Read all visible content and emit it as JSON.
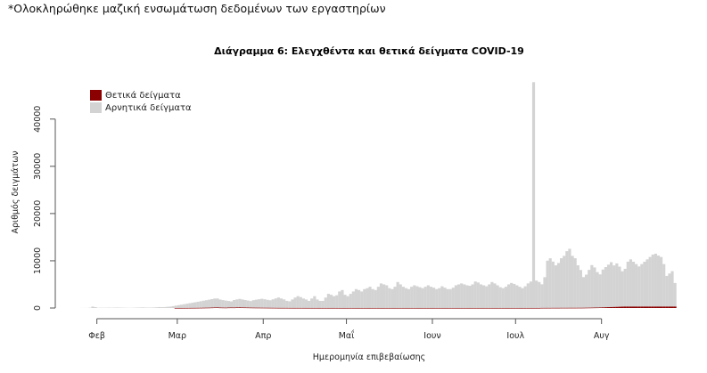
{
  "note": "*Ολοκληρώθηκε μαζική ενσωμάτωση δεδομένων των εργαστηρίων",
  "chart_data": {
    "type": "bar",
    "stacked": true,
    "title": "Διάγραμμα 6: Ελεγχθέντα και θετικά δείγματα COVID-19",
    "xlabel": "Ημερομηνία επιβεβαίωσης",
    "ylabel": "Αριθμός δειγμάτων",
    "x_range": [
      "2020-01-17",
      "2020-08-31"
    ],
    "ylim": [
      0,
      49000
    ],
    "y_ticks": [
      0,
      10000,
      20000,
      30000,
      40000
    ],
    "x_ticks": [
      {
        "label": "Φεβ",
        "date": "2020-02-01"
      },
      {
        "label": "Μαρ",
        "date": "2020-03-01"
      },
      {
        "label": "Απρ",
        "date": "2020-04-01"
      },
      {
        "label": "Μαΐ",
        "date": "2020-05-01"
      },
      {
        "label": "Ιουν",
        "date": "2020-06-01"
      },
      {
        "label": "Ιουλ",
        "date": "2020-07-01"
      },
      {
        "label": "Αυγ",
        "date": "2020-08-01"
      }
    ],
    "legend": {
      "position": "top-left"
    },
    "grid": false,
    "start_date": "2020-01-26",
    "series": [
      {
        "name": "Θετικά δείγματα",
        "color": "#8b0000",
        "values": [
          0,
          0,
          0,
          0,
          0,
          0,
          0,
          0,
          0,
          0,
          0,
          0,
          0,
          0,
          0,
          0,
          0,
          0,
          0,
          0,
          0,
          0,
          0,
          0,
          0,
          0,
          0,
          0,
          0,
          0,
          0,
          0,
          0,
          0,
          1,
          3,
          5,
          8,
          10,
          15,
          20,
          25,
          30,
          40,
          50,
          60,
          70,
          90,
          110,
          120,
          90,
          80,
          70,
          90,
          100,
          95,
          120,
          130,
          110,
          100,
          90,
          80,
          70,
          65,
          60,
          55,
          50,
          45,
          40,
          35,
          30,
          25,
          22,
          20,
          18,
          16,
          15,
          14,
          13,
          12,
          11,
          10,
          9,
          8,
          8,
          7,
          7,
          6,
          6,
          5,
          5,
          5,
          5,
          4,
          4,
          4,
          4,
          3,
          3,
          3,
          3,
          3,
          3,
          3,
          3,
          3,
          3,
          3,
          3,
          3,
          3,
          3,
          3,
          3,
          3,
          3,
          3,
          3,
          3,
          3,
          3,
          3,
          3,
          3,
          3,
          3,
          3,
          3,
          3,
          3,
          3,
          3,
          3,
          3,
          3,
          3,
          3,
          3,
          3,
          3,
          3,
          3,
          3,
          3,
          3,
          3,
          3,
          3,
          3,
          3,
          3,
          3,
          3,
          3,
          3,
          3,
          3,
          3,
          3,
          3,
          3,
          3,
          3,
          3,
          3,
          3,
          20,
          22,
          25,
          25,
          30,
          30,
          30,
          35,
          35,
          35,
          40,
          40,
          40,
          45,
          45,
          50,
          60,
          70,
          80,
          90,
          100,
          120,
          140,
          160,
          180,
          200,
          220,
          240,
          260,
          280,
          300,
          300,
          300,
          300,
          300,
          300,
          300,
          300,
          300,
          300,
          300,
          300,
          300,
          300,
          300,
          300,
          300,
          300,
          300,
          300,
          300,
          300,
          300
        ]
      },
      {
        "name": "Αρνητικά δείγματα",
        "color": "#d3d3d3",
        "values": [
          10,
          12,
          15,
          60,
          300,
          180,
          50,
          60,
          50,
          60,
          70,
          60,
          80,
          90,
          70,
          60,
          50,
          40,
          40,
          60,
          80,
          100,
          120,
          100,
          80,
          90,
          110,
          150,
          200,
          180,
          200,
          250,
          300,
          400,
          500,
          600,
          700,
          800,
          900,
          1000,
          1100,
          1200,
          1300,
          1400,
          1500,
          1600,
          1700,
          1800,
          1900,
          1900,
          1700,
          1600,
          1500,
          1400,
          1300,
          1600,
          1700,
          1800,
          1700,
          1600,
          1500,
          1400,
          1600,
          1700,
          1800,
          1900,
          1800,
          1700,
          1600,
          1800,
          2000,
          2200,
          2000,
          1800,
          1500,
          1400,
          1800,
          2200,
          2500,
          2300,
          2000,
          1800,
          1500,
          2000,
          2500,
          1800,
          1500,
          1500,
          2200,
          3000,
          2800,
          2500,
          2700,
          3500,
          3800,
          2800,
          2500,
          3000,
          3500,
          4000,
          3800,
          3500,
          4000,
          4200,
          4500,
          4000,
          3800,
          4500,
          5200,
          5000,
          4800,
          4200,
          4000,
          4500,
          5500,
          5000,
          4500,
          4200,
          4000,
          4500,
          4800,
          4600,
          4400,
          4200,
          4500,
          4800,
          4500,
          4300,
          4000,
          4200,
          4600,
          4300,
          4000,
          4000,
          4300,
          4800,
          5000,
          5200,
          5000,
          4800,
          4700,
          5000,
          5600,
          5400,
          5000,
          4800,
          4600,
          5000,
          5500,
          5200,
          4800,
          4400,
          4200,
          4500,
          5000,
          5300,
          5100,
          4800,
          4500,
          4200,
          4600,
          5200,
          5600,
          47800,
          5800,
          5500,
          5000,
          6500,
          10000,
          10500,
          9800,
          9000,
          9500,
          10500,
          11000,
          12000,
          12500,
          11000,
          10500,
          9000,
          8000,
          6500,
          7000,
          8000,
          9000,
          8500,
          7500,
          7000,
          8000,
          8500,
          9000,
          9500,
          8800,
          9200,
          8500,
          7500,
          8000,
          9500,
          10000,
          9500,
          9000,
          8500,
          9000,
          9500,
          10000,
          10500,
          11000,
          11200,
          10800,
          10500,
          9000,
          6500,
          7000,
          7500,
          5000
        ]
      }
    ]
  }
}
